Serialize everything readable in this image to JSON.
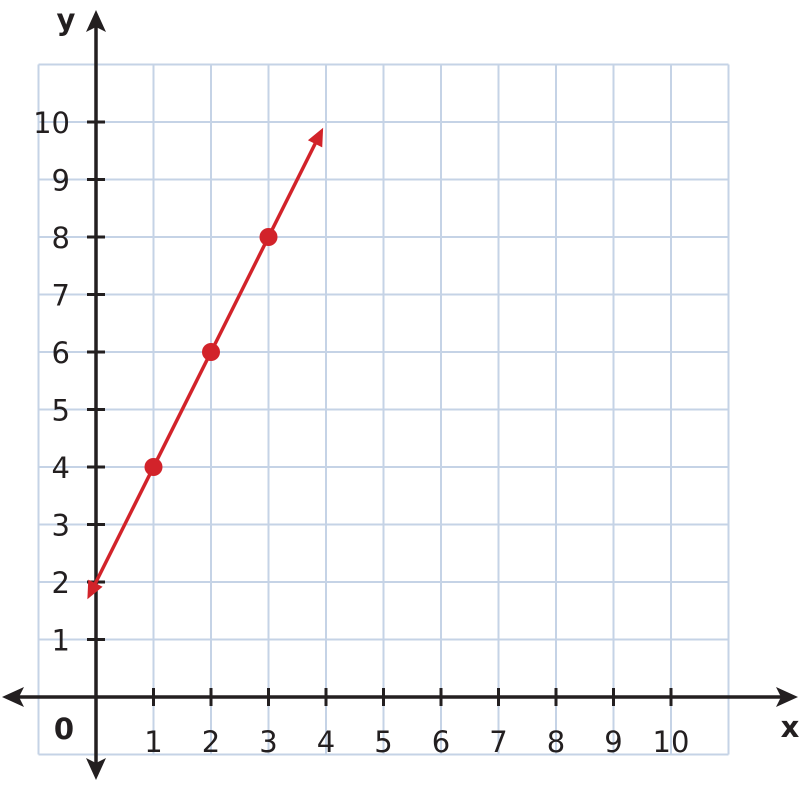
{
  "chart_data": {
    "type": "line",
    "title": "",
    "xlabel": "x",
    "ylabel": "y",
    "origin_label": "0",
    "xlim": [
      -1,
      11
    ],
    "ylim": [
      -1,
      11
    ],
    "x_ticks": [
      1,
      2,
      3,
      4,
      5,
      6,
      7,
      8,
      9,
      10
    ],
    "y_ticks": [
      1,
      2,
      3,
      4,
      5,
      6,
      7,
      8,
      9,
      10
    ],
    "x_tick_labels": [
      "1",
      "2",
      "3",
      "4",
      "5",
      "6",
      "7",
      "8",
      "9",
      "10"
    ],
    "y_tick_labels": [
      "1",
      "2",
      "3",
      "4",
      "5",
      "6",
      "7",
      "8",
      "9",
      "10"
    ],
    "grid": true,
    "series": [
      {
        "points": [
          {
            "x": 1,
            "y": 4
          },
          {
            "x": 2,
            "y": 6
          },
          {
            "x": 3,
            "y": 8
          }
        ],
        "line": {
          "slope": 2,
          "intercept": 2,
          "x_from": -0.15,
          "x_to": 3.95,
          "arrows": "both"
        }
      }
    ],
    "colors": {
      "line": "#d2232a",
      "grid": "#c5d3e6",
      "axis": "#231f20"
    }
  }
}
